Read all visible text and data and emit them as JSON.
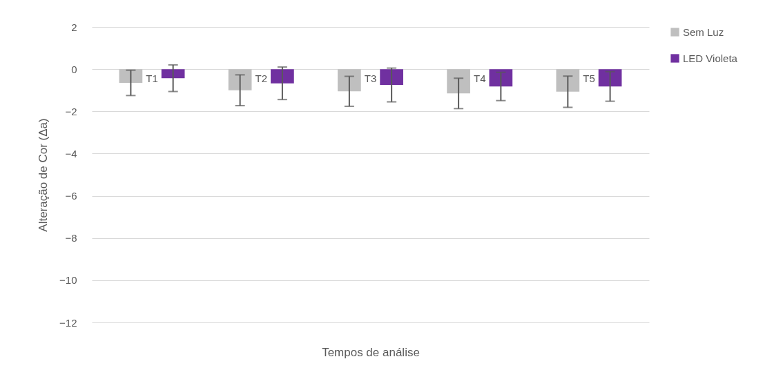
{
  "chart_data": {
    "type": "bar",
    "xlabel": "Tempos de análise",
    "ylabel": "Alteração de Cor (Δa)",
    "categories": [
      "T1",
      "T2",
      "T3",
      "T4",
      "T5"
    ],
    "series": [
      {
        "name": "Sem Luz",
        "color": "#bfbfbf",
        "values": [
          -0.65,
          -1.0,
          -1.05,
          -1.15,
          -1.07
        ],
        "errors": [
          0.6,
          0.73,
          0.71,
          0.72,
          0.74
        ]
      },
      {
        "name": "LED Violeta",
        "color": "#7030a0",
        "values": [
          -0.43,
          -0.67,
          -0.75,
          -0.82,
          -0.82
        ],
        "errors": [
          0.63,
          0.77,
          0.8,
          0.67,
          0.7
        ]
      }
    ],
    "ylim": [
      -12,
      2
    ],
    "yticks": [
      -12,
      -10,
      -8,
      -6,
      -4,
      -2,
      0,
      2
    ],
    "grid": "y",
    "legend": "right"
  }
}
